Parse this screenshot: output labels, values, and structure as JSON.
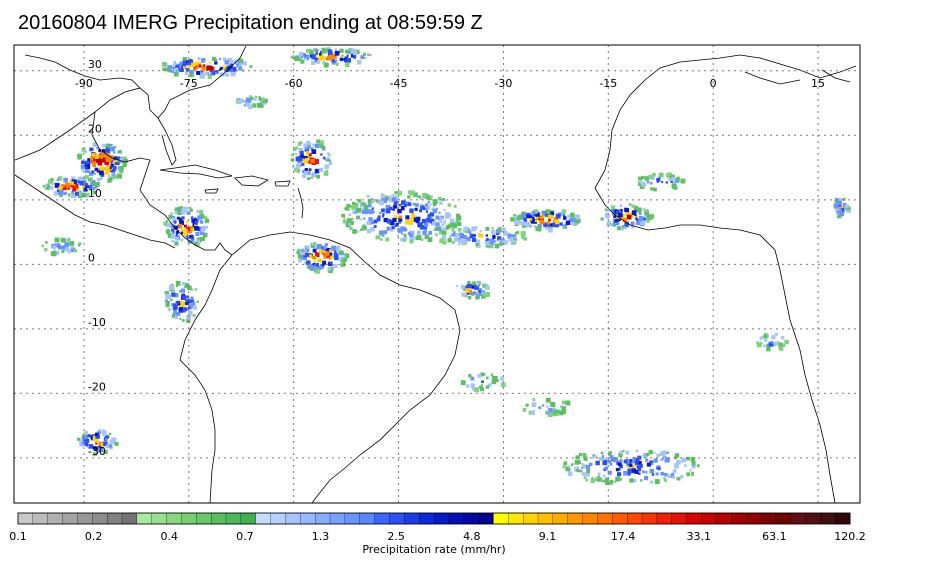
{
  "title": "20160804 IMERG Precipitation ending at 08:59:59 Z",
  "map": {
    "lon_labels": [
      "-90",
      "-75",
      "-60",
      "-45",
      "-30",
      "-15",
      "0",
      "15"
    ],
    "lat_labels": [
      "30",
      "20",
      "10",
      "0",
      "-10",
      "-20",
      "-30"
    ],
    "lon_values": [
      -90,
      -75,
      -60,
      -45,
      -30,
      -15,
      0,
      15
    ],
    "lat_values": [
      30,
      20,
      10,
      0,
      -10,
      -20,
      -30
    ],
    "lon_range": [
      -100,
      21
    ],
    "lat_range": [
      34,
      -37
    ],
    "grid": true,
    "colors": {
      "land_outline": "#000000",
      "grid": "#7a7a7a",
      "frame": "#000000"
    }
  },
  "colorbar": {
    "label": "Precipitation rate (mm/hr)",
    "tick_labels": [
      "0.1",
      "0.2",
      "0.4",
      "0.7",
      "1.3",
      "2.5",
      "4.8",
      "9.1",
      "17.4",
      "33.1",
      "63.1",
      "120.2"
    ],
    "colors": [
      "#c8c8c8",
      "#bcbcbc",
      "#b0b0b0",
      "#a4a4a4",
      "#989898",
      "#8c8c8c",
      "#808080",
      "#747474",
      "#a8e8a0",
      "#98e090",
      "#88d880",
      "#78d070",
      "#68c868",
      "#58c060",
      "#4cb858",
      "#40b050",
      "#c8dcff",
      "#b8d0ff",
      "#a8c4ff",
      "#98b8ff",
      "#88acff",
      "#78a0ff",
      "#6894ff",
      "#5888ff",
      "#3c64ff",
      "#2a50f5",
      "#1a3cea",
      "#1028dc",
      "#0818cc",
      "#0410b8",
      "#0008a4",
      "#000090",
      "#ffff00",
      "#ffe800",
      "#ffd400",
      "#ffc000",
      "#ffac00",
      "#ff9800",
      "#ff8400",
      "#ff7000",
      "#ff5c00",
      "#ff4800",
      "#f83400",
      "#f02000",
      "#e81000",
      "#d80000",
      "#c80000",
      "#b80000",
      "#a00000",
      "#900000",
      "#800000",
      "#700000",
      "#601010",
      "#501010",
      "#401010",
      "#300808"
    ]
  }
}
